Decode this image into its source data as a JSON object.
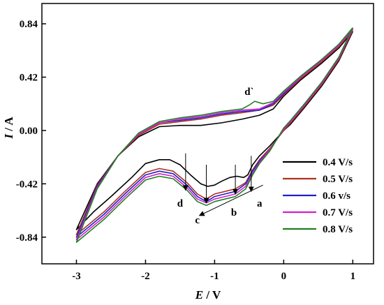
{
  "chart_data": {
    "type": "line",
    "xlabel_italic": "E",
    "xlabel_unit": " / V",
    "ylabel_italic": "I",
    "ylabel_unit": " / A",
    "xlim": [
      -3.5,
      1.3
    ],
    "ylim": [
      -1.05,
      1.0
    ],
    "x_ticks": [
      -3,
      -2,
      -1,
      0,
      1
    ],
    "x_tick_labels": [
      "-3",
      "-2",
      "-1",
      "0",
      "1"
    ],
    "y_ticks": [
      -0.84,
      -0.42,
      0.0,
      0.42,
      0.84
    ],
    "y_tick_labels": [
      "-0.84",
      "-0.42",
      "0.00",
      "0.42",
      "0.84"
    ],
    "grid": false,
    "legend_position": "bottom-right",
    "series": [
      {
        "name": "0.4 V/s",
        "color": "#000000",
        "cathodic": [
          [
            1.0,
            0.78
          ],
          [
            0.8,
            0.55
          ],
          [
            0.55,
            0.35
          ],
          [
            0.3,
            0.18
          ],
          [
            0.1,
            0.05
          ],
          [
            0.0,
            0.0
          ],
          [
            -0.2,
            -0.12
          ],
          [
            -0.35,
            -0.2
          ],
          [
            -0.45,
            -0.27
          ],
          [
            -0.52,
            -0.35
          ],
          [
            -0.58,
            -0.37
          ],
          [
            -0.68,
            -0.36
          ],
          [
            -0.78,
            -0.37
          ],
          [
            -0.9,
            -0.4
          ],
          [
            -1.0,
            -0.43
          ],
          [
            -1.1,
            -0.44
          ],
          [
            -1.2,
            -0.42
          ],
          [
            -1.35,
            -0.35
          ],
          [
            -1.5,
            -0.27
          ],
          [
            -1.65,
            -0.23
          ],
          [
            -1.8,
            -0.23
          ],
          [
            -2.0,
            -0.26
          ],
          [
            -2.2,
            -0.37
          ],
          [
            -2.5,
            -0.52
          ],
          [
            -2.75,
            -0.64
          ],
          [
            -3.0,
            -0.78
          ]
        ],
        "anodic": [
          [
            -3.0,
            -0.78
          ],
          [
            -2.7,
            -0.42
          ],
          [
            -2.4,
            -0.2
          ],
          [
            -2.1,
            -0.05
          ],
          [
            -1.8,
            0.03
          ],
          [
            -1.5,
            0.04
          ],
          [
            -1.2,
            0.04
          ],
          [
            -0.9,
            0.06
          ],
          [
            -0.6,
            0.09
          ],
          [
            -0.35,
            0.12
          ],
          [
            -0.15,
            0.17
          ],
          [
            0.0,
            0.27
          ],
          [
            0.25,
            0.4
          ],
          [
            0.55,
            0.53
          ],
          [
            0.8,
            0.65
          ],
          [
            1.0,
            0.78
          ]
        ]
      },
      {
        "name": "0.5 V/s",
        "color": "#b03020",
        "cathodic": [
          [
            1.0,
            0.79
          ],
          [
            0.8,
            0.56
          ],
          [
            0.55,
            0.36
          ],
          [
            0.3,
            0.19
          ],
          [
            0.1,
            0.06
          ],
          [
            0.0,
            0.0
          ],
          [
            -0.2,
            -0.14
          ],
          [
            -0.35,
            -0.23
          ],
          [
            -0.45,
            -0.31
          ],
          [
            -0.55,
            -0.41
          ],
          [
            -0.7,
            -0.46
          ],
          [
            -0.85,
            -0.48
          ],
          [
            -1.0,
            -0.5
          ],
          [
            -1.12,
            -0.54
          ],
          [
            -1.25,
            -0.5
          ],
          [
            -1.4,
            -0.41
          ],
          [
            -1.6,
            -0.32
          ],
          [
            -1.8,
            -0.3
          ],
          [
            -2.0,
            -0.33
          ],
          [
            -2.3,
            -0.48
          ],
          [
            -2.6,
            -0.64
          ],
          [
            -3.0,
            -0.82
          ]
        ],
        "anodic": [
          [
            -3.0,
            -0.82
          ],
          [
            -2.7,
            -0.43
          ],
          [
            -2.4,
            -0.2
          ],
          [
            -2.1,
            -0.04
          ],
          [
            -1.8,
            0.05
          ],
          [
            -1.5,
            0.07
          ],
          [
            -1.2,
            0.09
          ],
          [
            -0.9,
            0.12
          ],
          [
            -0.6,
            0.14
          ],
          [
            -0.35,
            0.16
          ],
          [
            -0.15,
            0.2
          ],
          [
            0.0,
            0.28
          ],
          [
            0.25,
            0.41
          ],
          [
            0.55,
            0.54
          ],
          [
            0.8,
            0.66
          ],
          [
            1.0,
            0.79
          ]
        ]
      },
      {
        "name": "0.6 v/s",
        "color": "#2020c8",
        "cathodic": [
          [
            1.0,
            0.8
          ],
          [
            0.8,
            0.57
          ],
          [
            0.55,
            0.37
          ],
          [
            0.3,
            0.2
          ],
          [
            0.1,
            0.07
          ],
          [
            0.0,
            0.01
          ],
          [
            -0.2,
            -0.15
          ],
          [
            -0.35,
            -0.24
          ],
          [
            -0.45,
            -0.32
          ],
          [
            -0.55,
            -0.42
          ],
          [
            -0.7,
            -0.48
          ],
          [
            -0.85,
            -0.5
          ],
          [
            -1.0,
            -0.52
          ],
          [
            -1.12,
            -0.56
          ],
          [
            -1.25,
            -0.52
          ],
          [
            -1.4,
            -0.43
          ],
          [
            -1.6,
            -0.34
          ],
          [
            -1.8,
            -0.32
          ],
          [
            -2.0,
            -0.35
          ],
          [
            -2.3,
            -0.5
          ],
          [
            -2.6,
            -0.66
          ],
          [
            -3.0,
            -0.84
          ]
        ],
        "anodic": [
          [
            -3.0,
            -0.84
          ],
          [
            -2.7,
            -0.44
          ],
          [
            -2.4,
            -0.2
          ],
          [
            -2.1,
            -0.03
          ],
          [
            -1.8,
            0.06
          ],
          [
            -1.5,
            0.08
          ],
          [
            -1.2,
            0.1
          ],
          [
            -0.9,
            0.13
          ],
          [
            -0.6,
            0.15
          ],
          [
            -0.35,
            0.16
          ],
          [
            -0.15,
            0.21
          ],
          [
            0.0,
            0.29
          ],
          [
            0.25,
            0.42
          ],
          [
            0.55,
            0.55
          ],
          [
            0.8,
            0.67
          ],
          [
            1.0,
            0.8
          ]
        ]
      },
      {
        "name": "0.7 V/s",
        "color": "#d020d0",
        "cathodic": [
          [
            1.0,
            0.8
          ],
          [
            0.8,
            0.57
          ],
          [
            0.55,
            0.37
          ],
          [
            0.3,
            0.2
          ],
          [
            0.1,
            0.07
          ],
          [
            0.0,
            0.01
          ],
          [
            -0.2,
            -0.15
          ],
          [
            -0.35,
            -0.25
          ],
          [
            -0.45,
            -0.34
          ],
          [
            -0.55,
            -0.44
          ],
          [
            -0.7,
            -0.5
          ],
          [
            -0.85,
            -0.52
          ],
          [
            -1.0,
            -0.54
          ],
          [
            -1.12,
            -0.57
          ],
          [
            -1.25,
            -0.54
          ],
          [
            -1.4,
            -0.45
          ],
          [
            -1.6,
            -0.36
          ],
          [
            -1.8,
            -0.34
          ],
          [
            -2.0,
            -0.37
          ],
          [
            -2.3,
            -0.52
          ],
          [
            -2.6,
            -0.68
          ],
          [
            -3.0,
            -0.86
          ]
        ],
        "anodic": [
          [
            -3.0,
            -0.86
          ],
          [
            -2.7,
            -0.45
          ],
          [
            -2.4,
            -0.2
          ],
          [
            -2.1,
            -0.03
          ],
          [
            -1.8,
            0.06
          ],
          [
            -1.5,
            0.09
          ],
          [
            -1.2,
            0.11
          ],
          [
            -0.9,
            0.14
          ],
          [
            -0.6,
            0.16
          ],
          [
            -0.35,
            0.17
          ],
          [
            -0.15,
            0.22
          ],
          [
            0.0,
            0.3
          ],
          [
            0.25,
            0.42
          ],
          [
            0.55,
            0.55
          ],
          [
            0.8,
            0.67
          ],
          [
            1.0,
            0.8
          ]
        ]
      },
      {
        "name": "0.8 V/s",
        "color": "#208020",
        "cathodic": [
          [
            1.0,
            0.81
          ],
          [
            0.8,
            0.58
          ],
          [
            0.55,
            0.38
          ],
          [
            0.3,
            0.21
          ],
          [
            0.1,
            0.08
          ],
          [
            0.0,
            0.02
          ],
          [
            -0.2,
            -0.16
          ],
          [
            -0.35,
            -0.26
          ],
          [
            -0.45,
            -0.35
          ],
          [
            -0.55,
            -0.46
          ],
          [
            -0.7,
            -0.52
          ],
          [
            -0.85,
            -0.54
          ],
          [
            -1.0,
            -0.56
          ],
          [
            -1.12,
            -0.59
          ],
          [
            -1.25,
            -0.56
          ],
          [
            -1.4,
            -0.47
          ],
          [
            -1.6,
            -0.38
          ],
          [
            -1.8,
            -0.36
          ],
          [
            -2.0,
            -0.39
          ],
          [
            -2.3,
            -0.54
          ],
          [
            -2.6,
            -0.7
          ],
          [
            -3.0,
            -0.88
          ]
        ],
        "anodic": [
          [
            -3.0,
            -0.88
          ],
          [
            -2.7,
            -0.46
          ],
          [
            -2.4,
            -0.2
          ],
          [
            -2.1,
            -0.02
          ],
          [
            -1.8,
            0.07
          ],
          [
            -1.5,
            0.1
          ],
          [
            -1.2,
            0.12
          ],
          [
            -0.9,
            0.15
          ],
          [
            -0.6,
            0.17
          ],
          [
            -0.5,
            0.2
          ],
          [
            -0.42,
            0.23
          ],
          [
            -0.3,
            0.21
          ],
          [
            -0.15,
            0.23
          ],
          [
            0.0,
            0.31
          ],
          [
            0.25,
            0.43
          ],
          [
            0.55,
            0.56
          ],
          [
            0.8,
            0.68
          ],
          [
            1.0,
            0.81
          ]
        ]
      }
    ],
    "peak_labels": [
      {
        "text": "d`",
        "x": -0.5,
        "y": 0.28
      },
      {
        "text": "d",
        "x": -1.5,
        "y": -0.6
      },
      {
        "text": "c",
        "x": -1.25,
        "y": -0.73
      },
      {
        "text": "b",
        "x": -0.72,
        "y": -0.67
      },
      {
        "text": "a",
        "x": -0.35,
        "y": -0.6
      }
    ],
    "down_arrows": [
      {
        "x": -1.42,
        "y_from": -0.18,
        "y_to": -0.47
      },
      {
        "x": -1.12,
        "y_from": -0.27,
        "y_to": -0.57
      },
      {
        "x": -0.7,
        "y_from": -0.27,
        "y_to": -0.5
      },
      {
        "x": -0.47,
        "y_from": -0.2,
        "y_to": -0.48
      }
    ],
    "trend_arrow": {
      "from": [
        -0.3,
        -0.43
      ],
      "to": [
        -1.22,
        -0.67
      ]
    }
  }
}
